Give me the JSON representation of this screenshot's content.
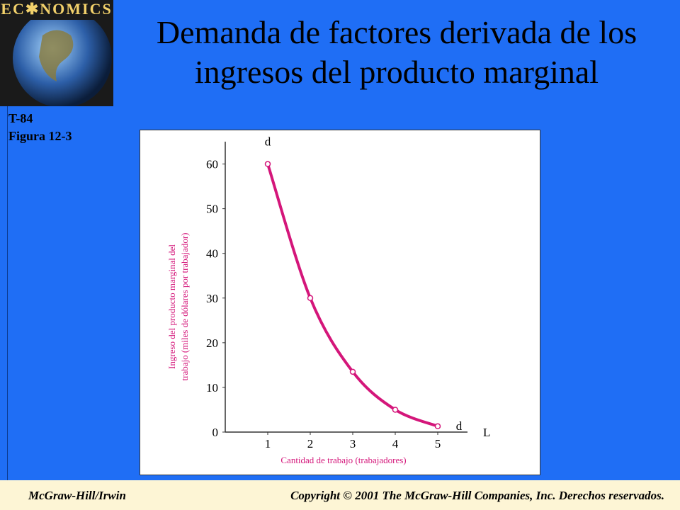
{
  "slide": {
    "logo": "EC✱NOMICS",
    "title": "Demanda de factores derivada de los ingresos del producto marginal",
    "code": "T-84",
    "figure": "Figura 12-3",
    "footer_left": "McGraw-Hill/Irwin",
    "footer_right": "Copyright © 2001 The McGraw-Hill Companies, Inc. Derechos reservados."
  },
  "chart_data": {
    "type": "line",
    "x": [
      1,
      2,
      3,
      4,
      5
    ],
    "values": [
      60,
      30,
      13.5,
      5,
      1.3
    ],
    "color": "#d4167a",
    "xlim": [
      0,
      5.7
    ],
    "xticks": [
      1,
      2,
      3,
      4,
      5
    ],
    "ylim": [
      0,
      65
    ],
    "yticks": [
      0,
      10,
      20,
      30,
      40,
      50,
      60
    ],
    "xlabel": "Cantidad de trabajo (trabajadores)",
    "ylabel": [
      "Ingreso del producto marginal del",
      "trabajo (miles de dólares por trabajador)"
    ],
    "curve_labels": [
      "d",
      "d"
    ],
    "x_symbol": "L"
  }
}
